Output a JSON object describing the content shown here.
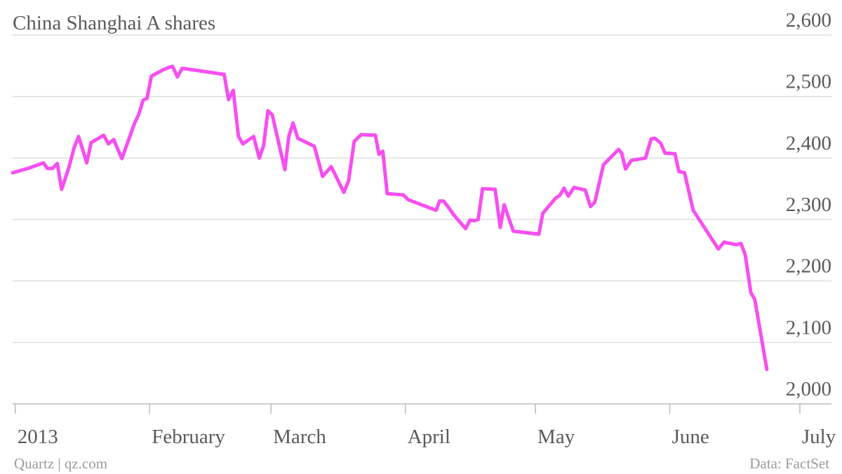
{
  "chart_data": {
    "type": "line",
    "title": "China Shanghai A shares",
    "credit": "Quartz | qz.com",
    "source": "Data: FactSet",
    "x": [
      -0.6,
      2.9,
      6.5,
      7.4,
      8.6,
      9.7,
      10.7,
      12.3,
      13.6,
      14.6,
      15.5,
      16.5,
      17.5,
      20.4,
      21.5,
      22.7,
      24.6,
      27.5,
      28.5,
      29.5,
      30.4,
      31.4,
      34.0,
      35.3,
      36.3,
      37.4,
      38.5,
      48.2,
      49.2,
      50.3,
      51.5,
      52.5,
      55.0,
      56.3,
      57.3,
      58.3,
      59.3,
      62.2,
      63.1,
      64.1,
      65.2,
      69.0,
      70.9,
      72.9,
      75.8,
      76.9,
      78.2,
      79.8,
      83.1,
      83.9,
      84.8,
      85.8,
      89.5,
      90.7,
      97.1,
      97.9,
      98.8,
      99.7,
      101.0,
      103.9,
      104.9,
      105.9,
      106.8,
      107.8,
      110.7,
      111.9,
      112.8,
      114.9,
      120.8,
      121.7,
      124.7,
      125.6,
      126.6,
      127.6,
      128.9,
      131.5,
      132.7,
      133.7,
      135.7,
      139.2,
      139.9,
      140.8,
      142.1,
      145.4,
      146.7,
      147.6,
      148.9,
      149.9,
      152.2,
      153.1,
      154.4,
      156.4,
      162.2,
      163.5,
      166.4,
      167.4,
      168.4,
      169.7,
      170.6,
      173.4
    ],
    "series": [
      {
        "name": "China Shanghai A shares",
        "color": "#f64ff0",
        "values": [
          2376,
          2383,
          2392,
          2383,
          2383,
          2391,
          2349,
          2383,
          2417,
          2435,
          2415,
          2392,
          2425,
          2437,
          2423,
          2430,
          2399,
          2456,
          2471,
          2494,
          2497,
          2533,
          2543,
          2547,
          2549,
          2532,
          2546,
          2536,
          2495,
          2510,
          2435,
          2423,
          2435,
          2400,
          2420,
          2477,
          2470,
          2381,
          2435,
          2457,
          2432,
          2419,
          2370,
          2386,
          2344,
          2363,
          2427,
          2438,
          2437,
          2406,
          2411,
          2342,
          2340,
          2332,
          2315,
          2330,
          2330,
          2322,
          2309,
          2285,
          2299,
          2298,
          2300,
          2350,
          2349,
          2287,
          2324,
          2281,
          2276,
          2310,
          2335,
          2339,
          2351,
          2338,
          2352,
          2348,
          2321,
          2328,
          2389,
          2414,
          2408,
          2382,
          2396,
          2400,
          2431,
          2432,
          2424,
          2408,
          2407,
          2378,
          2376,
          2315,
          2252,
          2263,
          2259,
          2261,
          2243,
          2181,
          2170,
          2056
        ]
      }
    ],
    "xlim": [
      -0.6,
      188.3
    ],
    "xticks": [
      {
        "value": 0,
        "label": "2013"
      },
      {
        "value": 31,
        "label": "February"
      },
      {
        "value": 59,
        "label": "March"
      },
      {
        "value": 90,
        "label": "April"
      },
      {
        "value": 120,
        "label": "May"
      },
      {
        "value": 151,
        "label": "June"
      },
      {
        "value": 181,
        "label": "July"
      }
    ],
    "ylim": [
      2000,
      2600
    ],
    "yticks": [
      {
        "value": 2000,
        "label": "2,000"
      },
      {
        "value": 2100,
        "label": "2,100"
      },
      {
        "value": 2200,
        "label": "2,200"
      },
      {
        "value": 2300,
        "label": "2,300"
      },
      {
        "value": 2400,
        "label": "2,400"
      },
      {
        "value": 2500,
        "label": "2,500"
      },
      {
        "value": 2600,
        "label": "2,600"
      }
    ],
    "grid": true
  }
}
